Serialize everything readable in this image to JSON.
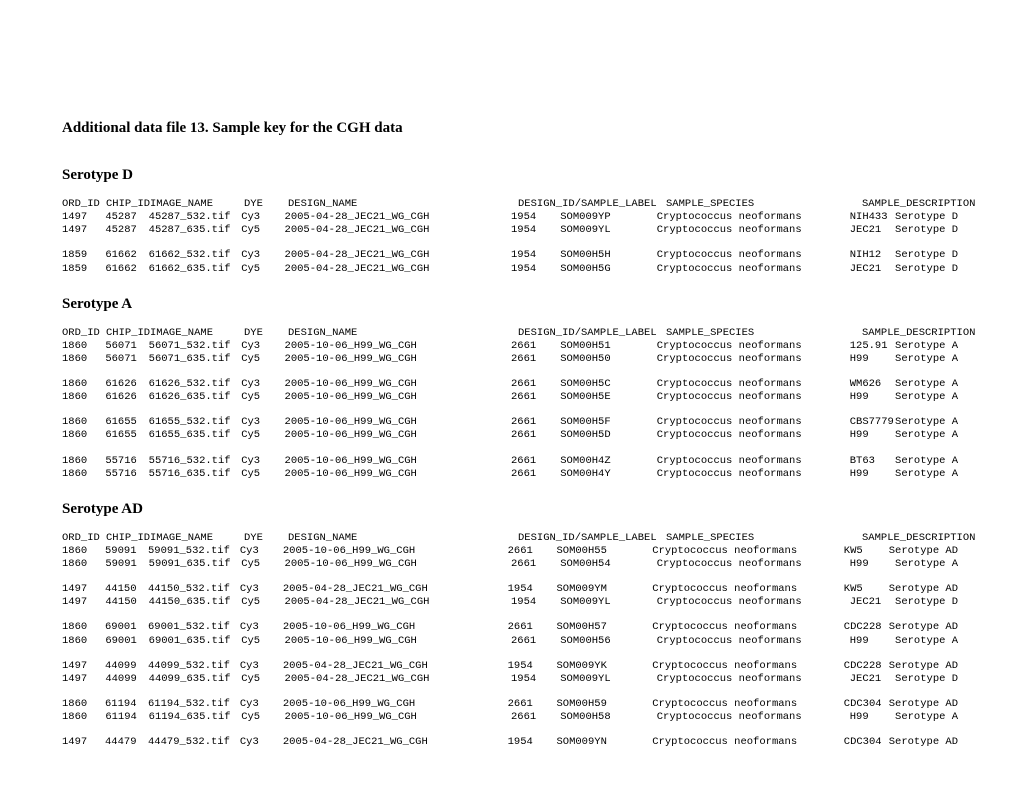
{
  "title": "Additional data file 13.  Sample key for the CGH data",
  "columns": [
    "ORD_ID",
    "CHIP_ID",
    "IMAGE_NAME",
    "DYE",
    "DESIGN_NAME",
    "DESIGN_ID/SAMPLE_LABEL",
    "",
    "SAMPLE_SPECIES",
    "SAMPLE_DESCRIPTION",
    ""
  ],
  "sections": [
    {
      "heading": "Serotype D",
      "groups": [
        [
          [
            "1497",
            "45287",
            "45287_532.tif",
            "Cy3",
            "2005-04-28_JEC21_WG_CGH",
            "1954",
            "SOM009YP",
            "Cryptococcus neoformans",
            "NIH433",
            "Serotype D"
          ],
          [
            "1497",
            "45287",
            "45287_635.tif",
            "Cy5",
            "2005-04-28_JEC21_WG_CGH",
            "1954",
            "SOM009YL",
            "Cryptococcus neoformans",
            "JEC21",
            "Serotype D"
          ]
        ],
        [
          [
            "1859",
            "61662",
            "61662_532.tif",
            "Cy3",
            "2005-04-28_JEC21_WG_CGH",
            "1954",
            "SOM00H5H",
            "Cryptococcus neoformans",
            "NIH12",
            "Serotype D"
          ],
          [
            "1859",
            "61662",
            "61662_635.tif",
            "Cy5",
            "2005-04-28_JEC21_WG_CGH",
            "1954",
            "SOM00H5G",
            "Cryptococcus neoformans",
            "JEC21",
            "Serotype D"
          ]
        ]
      ]
    },
    {
      "heading": "Serotype A",
      "groups": [
        [
          [
            "1860",
            "56071",
            "56071_532.tif",
            "Cy3",
            "2005-10-06_H99_WG_CGH",
            "2661",
            "SOM00H51",
            "Cryptococcus neoformans",
            "125.91",
            "Serotype A"
          ],
          [
            "1860",
            "56071",
            "56071_635.tif",
            "Cy5",
            "2005-10-06_H99_WG_CGH",
            "2661",
            "SOM00H50",
            "Cryptococcus neoformans",
            "H99",
            "Serotype A"
          ]
        ],
        [
          [
            "1860",
            "61626",
            "61626_532.tif",
            "Cy3",
            "2005-10-06_H99_WG_CGH",
            "2661",
            "SOM00H5C",
            "Cryptococcus neoformans",
            "WM626",
            "Serotype A"
          ],
          [
            "1860",
            "61626",
            "61626_635.tif",
            "Cy5",
            "2005-10-06_H99_WG_CGH",
            "2661",
            "SOM00H5E",
            "Cryptococcus neoformans",
            "H99",
            "Serotype A"
          ]
        ],
        [
          [
            "1860",
            "61655",
            "61655_532.tif",
            "Cy3",
            "2005-10-06_H99_WG_CGH",
            "2661",
            "SOM00H5F",
            "Cryptococcus neoformans",
            "CBS7779",
            "Serotype A"
          ],
          [
            "1860",
            "61655",
            "61655_635.tif",
            "Cy5",
            "2005-10-06_H99_WG_CGH",
            "2661",
            "SOM00H5D",
            "Cryptococcus neoformans",
            "H99",
            "Serotype A"
          ]
        ],
        [
          [
            "1860",
            "55716",
            "55716_532.tif",
            "Cy3",
            "2005-10-06_H99_WG_CGH",
            "2661",
            "SOM00H4Z",
            "Cryptococcus neoformans",
            "BT63",
            "Serotype A"
          ],
          [
            "1860",
            "55716",
            "55716_635.tif",
            "Cy5",
            "2005-10-06_H99_WG_CGH",
            "2661",
            "SOM00H4Y",
            "Cryptococcus neoformans",
            "H99",
            "Serotype A"
          ]
        ]
      ]
    },
    {
      "heading": "Serotype AD",
      "groups": [
        [
          [
            "1860",
            "59091",
            "59091_532.tif",
            "Cy3",
            "2005-10-06_H99_WG_CGH",
            "2661",
            "SOM00H55",
            "Cryptococcus neoformans",
            "KW5",
            "Serotype AD"
          ],
          [
            "1860",
            "59091",
            "59091_635.tif",
            "Cy5",
            "2005-10-06_H99_WG_CGH",
            "2661",
            "SOM00H54",
            "Cryptococcus neoformans",
            "H99",
            "Serotype A"
          ]
        ],
        [
          [
            "1497",
            "44150",
            "44150_532.tif",
            "Cy3",
            "2005-04-28_JEC21_WG_CGH",
            "1954",
            "SOM009YM",
            "Cryptococcus neoformans",
            "KW5",
            "Serotype AD"
          ],
          [
            "1497",
            "44150",
            "44150_635.tif",
            "Cy5",
            "2005-04-28_JEC21_WG_CGH",
            "1954",
            "SOM009YL",
            "Cryptococcus neoformans",
            "JEC21",
            "Serotype D"
          ]
        ],
        [
          [
            "1860",
            "69001",
            "69001_532.tif",
            "Cy3",
            "2005-10-06_H99_WG_CGH",
            "2661",
            "SOM00H57",
            "Cryptococcus neoformans",
            "CDC228",
            "Serotype AD"
          ],
          [
            "1860",
            "69001",
            "69001_635.tif",
            "Cy5",
            "2005-10-06_H99_WG_CGH",
            "2661",
            "SOM00H56",
            "Cryptococcus neoformans",
            "H99",
            "Serotype A"
          ]
        ],
        [
          [
            "1497",
            "44099",
            "44099_532.tif",
            "Cy3",
            "2005-04-28_JEC21_WG_CGH",
            "1954",
            "SOM009YK",
            "Cryptococcus neoformans",
            "CDC228",
            "Serotype AD"
          ],
          [
            "1497",
            "44099",
            "44099_635.tif",
            "Cy5",
            "2005-04-28_JEC21_WG_CGH",
            "1954",
            "SOM009YL",
            "Cryptococcus neoformans",
            "JEC21",
            "Serotype D"
          ]
        ],
        [
          [
            "1860",
            "61194",
            "61194_532.tif",
            "Cy3",
            "2005-10-06_H99_WG_CGH",
            "2661",
            "SOM00H59",
            "Cryptococcus neoformans",
            "CDC304",
            "Serotype AD"
          ],
          [
            "1860",
            "61194",
            "61194_635.tif",
            "Cy5",
            "2005-10-06_H99_WG_CGH",
            "2661",
            "SOM00H58",
            "Cryptococcus neoformans",
            "H99",
            "Serotype A"
          ]
        ],
        [
          [
            "1497",
            "44479",
            "44479_532.tif",
            "Cy3",
            "2005-04-28_JEC21_WG_CGH",
            "1954",
            "SOM009YN",
            "Cryptococcus neoformans",
            "CDC304",
            "Serotype AD"
          ]
        ]
      ]
    }
  ]
}
